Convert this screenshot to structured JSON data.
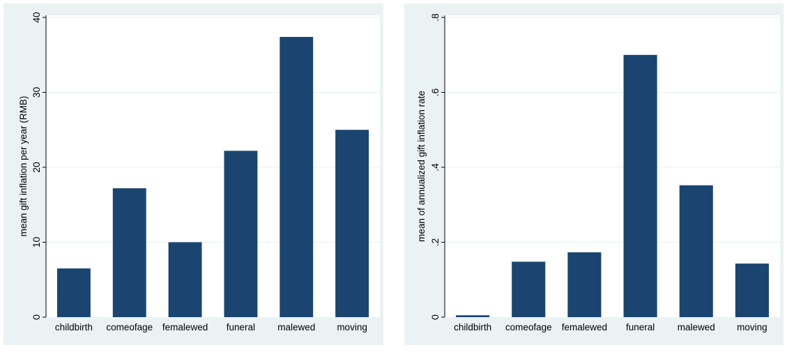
{
  "colors": {
    "panel_background": "#eaf2f3",
    "plot_background": "#ffffff",
    "bar": "#1b4570",
    "axis": "#000000",
    "gridline": "#eaf2f3"
  },
  "chart_data": [
    {
      "type": "bar",
      "title": "",
      "xlabel": "",
      "ylabel": "mean gift inflation per year (RMB)",
      "categories": [
        "childbirth",
        "comeofage",
        "femalewed",
        "funeral",
        "malewed",
        "moving"
      ],
      "values": [
        6.5,
        17.2,
        10.0,
        22.2,
        37.4,
        25.0
      ],
      "ylim": [
        0,
        40
      ],
      "yticks": [
        0,
        10,
        20,
        30,
        40
      ],
      "ytick_labels": [
        "0",
        "10",
        "20",
        "30",
        "40"
      ],
      "grid": true
    },
    {
      "type": "bar",
      "title": "",
      "xlabel": "",
      "ylabel": "mean of annualized gift inflation rate",
      "categories": [
        "childbirth",
        "comeofage",
        "femalewed",
        "funeral",
        "malewed",
        "moving"
      ],
      "values": [
        0.005,
        0.148,
        0.173,
        0.7,
        0.352,
        0.143
      ],
      "ylim": [
        0,
        0.8
      ],
      "yticks": [
        0,
        0.2,
        0.4,
        0.6,
        0.8
      ],
      "ytick_labels": [
        "0",
        ".2",
        ".4",
        ".6",
        ".8"
      ],
      "grid": true
    }
  ]
}
